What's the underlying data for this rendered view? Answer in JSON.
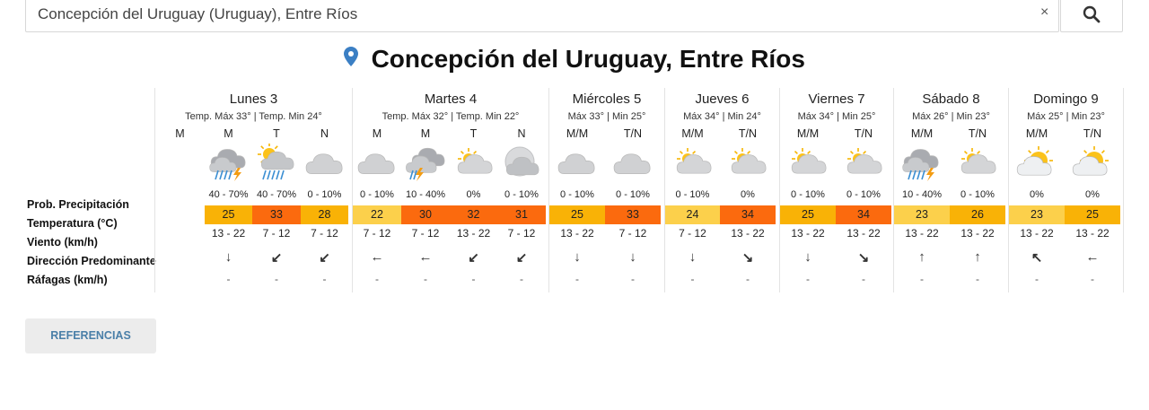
{
  "search": {
    "value": "Concepción del Uruguay (Uruguay), Entre Ríos",
    "clear_label": "×"
  },
  "title": "Concepción del Uruguay, Entre Ríos",
  "labels": {
    "prob": "Prob. Precipitación",
    "temp": "Temperatura (°C)",
    "wind": "Viento (km/h)",
    "dir": "Dirección Predominante",
    "gust": "Ráfagas (km/h)"
  },
  "colors": {
    "yellow": "#fcd04b",
    "orange": "#f9b206",
    "red": "#fb6a0e"
  },
  "days": [
    {
      "name": "Lunes 3",
      "temps": "Temp. Máx 33° | Temp. Min 24°",
      "slots": [
        {
          "period": "M",
          "icon": "none",
          "prec": "",
          "temp": "",
          "tcolor": "",
          "wind": "",
          "dir": "",
          "gust": ""
        },
        {
          "period": "M",
          "icon": "storm-rain-cloud-icon",
          "prec": "40 - 70%",
          "temp": "25",
          "tcolor": "orange",
          "wind": "13 - 22",
          "dir": "↓",
          "gust": "-"
        },
        {
          "period": "T",
          "icon": "sun-rain-cloud-icon",
          "prec": "40 - 70%",
          "temp": "33",
          "tcolor": "red",
          "wind": "7 - 12",
          "dir": "↙",
          "gust": "-"
        },
        {
          "period": "N",
          "icon": "cloudy-icon",
          "prec": "0 - 10%",
          "temp": "28",
          "tcolor": "orange",
          "wind": "7 - 12",
          "dir": "↙",
          "gust": "-"
        }
      ]
    },
    {
      "name": "Martes 4",
      "temps": "Temp. Máx 32° | Temp. Min 22°",
      "slots": [
        {
          "period": "M",
          "icon": "cloudy-icon",
          "prec": "0 - 10%",
          "temp": "22",
          "tcolor": "yellow",
          "wind": "7 - 12",
          "dir": "←",
          "gust": "-"
        },
        {
          "period": "M",
          "icon": "storm-cloud-icon",
          "prec": "10 - 40%",
          "temp": "30",
          "tcolor": "red",
          "wind": "7 - 12",
          "dir": "←",
          "gust": "-"
        },
        {
          "period": "T",
          "icon": "partly-cloudy-icon",
          "prec": "0%",
          "temp": "32",
          "tcolor": "red",
          "wind": "13 - 22",
          "dir": "↙",
          "gust": "-"
        },
        {
          "period": "N",
          "icon": "moon-cloudy-icon",
          "prec": "0 - 10%",
          "temp": "31",
          "tcolor": "red",
          "wind": "7 - 12",
          "dir": "↙",
          "gust": "-"
        }
      ]
    },
    {
      "name": "Miércoles 5",
      "temps": "Máx 33° | Min 25°",
      "slots": [
        {
          "period": "M/M",
          "icon": "cloudy-icon",
          "prec": "0 - 10%",
          "temp": "25",
          "tcolor": "orange",
          "wind": "13 - 22",
          "dir": "↓",
          "gust": "-"
        },
        {
          "period": "T/N",
          "icon": "cloudy-icon",
          "prec": "0 - 10%",
          "temp": "33",
          "tcolor": "red",
          "wind": "7 - 12",
          "dir": "↓",
          "gust": "-"
        }
      ]
    },
    {
      "name": "Jueves 6",
      "temps": "Máx 34° | Min 24°",
      "slots": [
        {
          "period": "M/M",
          "icon": "partly-cloudy-icon",
          "prec": "0 - 10%",
          "temp": "24",
          "tcolor": "yellow",
          "wind": "7 - 12",
          "dir": "↓",
          "gust": "-"
        },
        {
          "period": "T/N",
          "icon": "partly-cloudy-icon",
          "prec": "0%",
          "temp": "34",
          "tcolor": "red",
          "wind": "13 - 22",
          "dir": "↘",
          "gust": "-"
        }
      ]
    },
    {
      "name": "Viernes 7",
      "temps": "Máx 34° | Min 25°",
      "slots": [
        {
          "period": "M/M",
          "icon": "partly-cloudy-icon",
          "prec": "0 - 10%",
          "temp": "25",
          "tcolor": "orange",
          "wind": "13 - 22",
          "dir": "↓",
          "gust": "-"
        },
        {
          "period": "T/N",
          "icon": "partly-cloudy-icon",
          "prec": "0 - 10%",
          "temp": "34",
          "tcolor": "red",
          "wind": "13 - 22",
          "dir": "↘",
          "gust": "-"
        }
      ]
    },
    {
      "name": "Sábado 8",
      "temps": "Máx 26° | Min 23°",
      "slots": [
        {
          "period": "M/M",
          "icon": "storm-rain-cloud-icon",
          "prec": "10 - 40%",
          "temp": "23",
          "tcolor": "yellow",
          "wind": "13 - 22",
          "dir": "↑",
          "gust": "-"
        },
        {
          "period": "T/N",
          "icon": "partly-cloudy-icon",
          "prec": "0 - 10%",
          "temp": "26",
          "tcolor": "orange",
          "wind": "13 - 22",
          "dir": "↑",
          "gust": "-"
        }
      ]
    },
    {
      "name": "Domingo 9",
      "temps": "Máx 25° | Min 23°",
      "slots": [
        {
          "period": "M/M",
          "icon": "sun-cloud-icon",
          "prec": "0%",
          "temp": "23",
          "tcolor": "yellow",
          "wind": "13 - 22",
          "dir": "↖",
          "gust": "-"
        },
        {
          "period": "T/N",
          "icon": "sun-cloud-icon",
          "prec": "0%",
          "temp": "25",
          "tcolor": "orange",
          "wind": "13 - 22",
          "dir": "←",
          "gust": "-"
        }
      ]
    }
  ],
  "references_label": "REFERENCIAS"
}
